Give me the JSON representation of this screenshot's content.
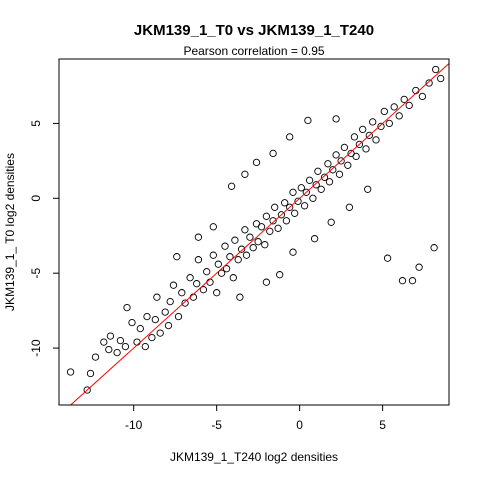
{
  "chart_data": {
    "type": "scatter",
    "title": "JKM139_1_T0 vs JKM139_1_T240",
    "subtitle": "Pearson correlation =  0.95",
    "xlabel": "JKM139_1_T240 log2 densities",
    "ylabel": "JKM139_1_ T0 log2 densities",
    "xlim": [
      -14.5,
      9.0
    ],
    "ylim": [
      -13.8,
      9.3
    ],
    "x_ticks": [
      -10,
      -5,
      0,
      5
    ],
    "y_ticks": [
      -10,
      -5,
      0,
      5
    ],
    "x_tick_labels": [
      "-10",
      "-5",
      "0",
      "5"
    ],
    "y_tick_labels": [
      "-10",
      "-5",
      "0",
      "5"
    ],
    "fit_line": {
      "slope": 1.0,
      "intercept": 0.0,
      "color": "#ff0000"
    },
    "marker": "open-circle",
    "grid": false,
    "points": [
      [
        -13.8,
        -11.6
      ],
      [
        -12.8,
        -12.8
      ],
      [
        -12.6,
        -11.7
      ],
      [
        -12.3,
        -10.6
      ],
      [
        -11.8,
        -9.6
      ],
      [
        -11.5,
        -10.1
      ],
      [
        -11.4,
        -9.2
      ],
      [
        -11.0,
        -10.3
      ],
      [
        -10.8,
        -9.5
      ],
      [
        -10.5,
        -9.9
      ],
      [
        -10.4,
        -7.3
      ],
      [
        -10.1,
        -8.3
      ],
      [
        -9.8,
        -9.6
      ],
      [
        -9.6,
        -8.7
      ],
      [
        -9.3,
        -9.9
      ],
      [
        -9.2,
        -7.9
      ],
      [
        -8.9,
        -9.3
      ],
      [
        -8.7,
        -8.1
      ],
      [
        -8.6,
        -6.6
      ],
      [
        -8.4,
        -9.0
      ],
      [
        -8.1,
        -7.6
      ],
      [
        -7.9,
        -8.5
      ],
      [
        -7.8,
        -6.9
      ],
      [
        -7.6,
        -5.8
      ],
      [
        -7.3,
        -7.9
      ],
      [
        -7.1,
        -6.3
      ],
      [
        -6.9,
        -7.0
      ],
      [
        -6.6,
        -5.3
      ],
      [
        -6.4,
        -6.6
      ],
      [
        -6.2,
        -5.7
      ],
      [
        -6.1,
        -4.1
      ],
      [
        -5.8,
        -6.1
      ],
      [
        -5.6,
        -4.9
      ],
      [
        -5.4,
        -5.6
      ],
      [
        -5.2,
        -3.8
      ],
      [
        -5.0,
        -6.3
      ],
      [
        -4.9,
        -4.4
      ],
      [
        -4.7,
        -5.0
      ],
      [
        -4.5,
        -3.2
      ],
      [
        -4.4,
        -4.7
      ],
      [
        -4.2,
        -3.9
      ],
      [
        -4.0,
        -5.3
      ],
      [
        -3.9,
        -2.8
      ],
      [
        -3.7,
        -4.1
      ],
      [
        -3.5,
        -3.4
      ],
      [
        -3.3,
        -2.1
      ],
      [
        -3.2,
        -3.8
      ],
      [
        -3.0,
        -2.6
      ],
      [
        -2.8,
        -3.3
      ],
      [
        -2.6,
        -1.7
      ],
      [
        -2.5,
        -2.9
      ],
      [
        -2.3,
        -1.9
      ],
      [
        -2.1,
        -3.1
      ],
      [
        -2.0,
        -1.2
      ],
      [
        -1.8,
        -2.2
      ],
      [
        -1.6,
        -1.5
      ],
      [
        -1.5,
        -0.6
      ],
      [
        -1.3,
        -2.0
      ],
      [
        -1.1,
        -1.1
      ],
      [
        -0.9,
        -0.3
      ],
      [
        -0.8,
        -1.5
      ],
      [
        -0.6,
        -0.6
      ],
      [
        -0.4,
        0.4
      ],
      [
        -0.3,
        -1.0
      ],
      [
        -0.1,
        -0.2
      ],
      [
        0.1,
        0.7
      ],
      [
        0.3,
        -0.5
      ],
      [
        0.4,
        0.4
      ],
      [
        0.6,
        1.2
      ],
      [
        0.8,
        0.0
      ],
      [
        1.0,
        0.9
      ],
      [
        1.1,
        1.8
      ],
      [
        1.3,
        0.6
      ],
      [
        1.5,
        1.4
      ],
      [
        1.7,
        2.3
      ],
      [
        1.8,
        1.1
      ],
      [
        2.0,
        1.9
      ],
      [
        2.2,
        2.9
      ],
      [
        2.4,
        1.6
      ],
      [
        2.5,
        2.5
      ],
      [
        2.7,
        3.4
      ],
      [
        2.9,
        2.2
      ],
      [
        3.1,
        3.0
      ],
      [
        3.3,
        4.1
      ],
      [
        3.4,
        2.8
      ],
      [
        3.6,
        3.6
      ],
      [
        3.8,
        4.6
      ],
      [
        4.0,
        3.3
      ],
      [
        4.2,
        4.2
      ],
      [
        4.4,
        5.1
      ],
      [
        4.6,
        3.9
      ],
      [
        4.9,
        4.8
      ],
      [
        5.1,
        5.8
      ],
      [
        5.4,
        5.0
      ],
      [
        5.7,
        6.1
      ],
      [
        6.0,
        5.5
      ],
      [
        6.3,
        6.6
      ],
      [
        6.6,
        6.2
      ],
      [
        7.0,
        7.2
      ],
      [
        7.4,
        6.8
      ],
      [
        7.8,
        7.7
      ],
      [
        8.2,
        8.6
      ],
      [
        8.5,
        8.0
      ],
      [
        5.3,
        -4.0
      ],
      [
        6.8,
        -5.5
      ],
      [
        7.2,
        -4.6
      ],
      [
        8.1,
        -3.3
      ],
      [
        6.2,
        -5.5
      ],
      [
        -2.6,
        2.4
      ],
      [
        -3.3,
        1.6
      ],
      [
        -4.1,
        0.8
      ],
      [
        -5.2,
        -1.9
      ],
      [
        -6.1,
        -2.6
      ],
      [
        -7.4,
        -3.9
      ],
      [
        -1.6,
        3.0
      ],
      [
        -0.6,
        4.1
      ],
      [
        0.5,
        5.2
      ],
      [
        2.2,
        5.3
      ],
      [
        -2.0,
        -5.6
      ],
      [
        -0.4,
        -3.6
      ],
      [
        0.9,
        -2.7
      ],
      [
        1.9,
        -1.6
      ],
      [
        3.0,
        -0.6
      ],
      [
        4.1,
        0.6
      ],
      [
        -3.6,
        -6.6
      ],
      [
        -1.2,
        -5.1
      ]
    ]
  }
}
